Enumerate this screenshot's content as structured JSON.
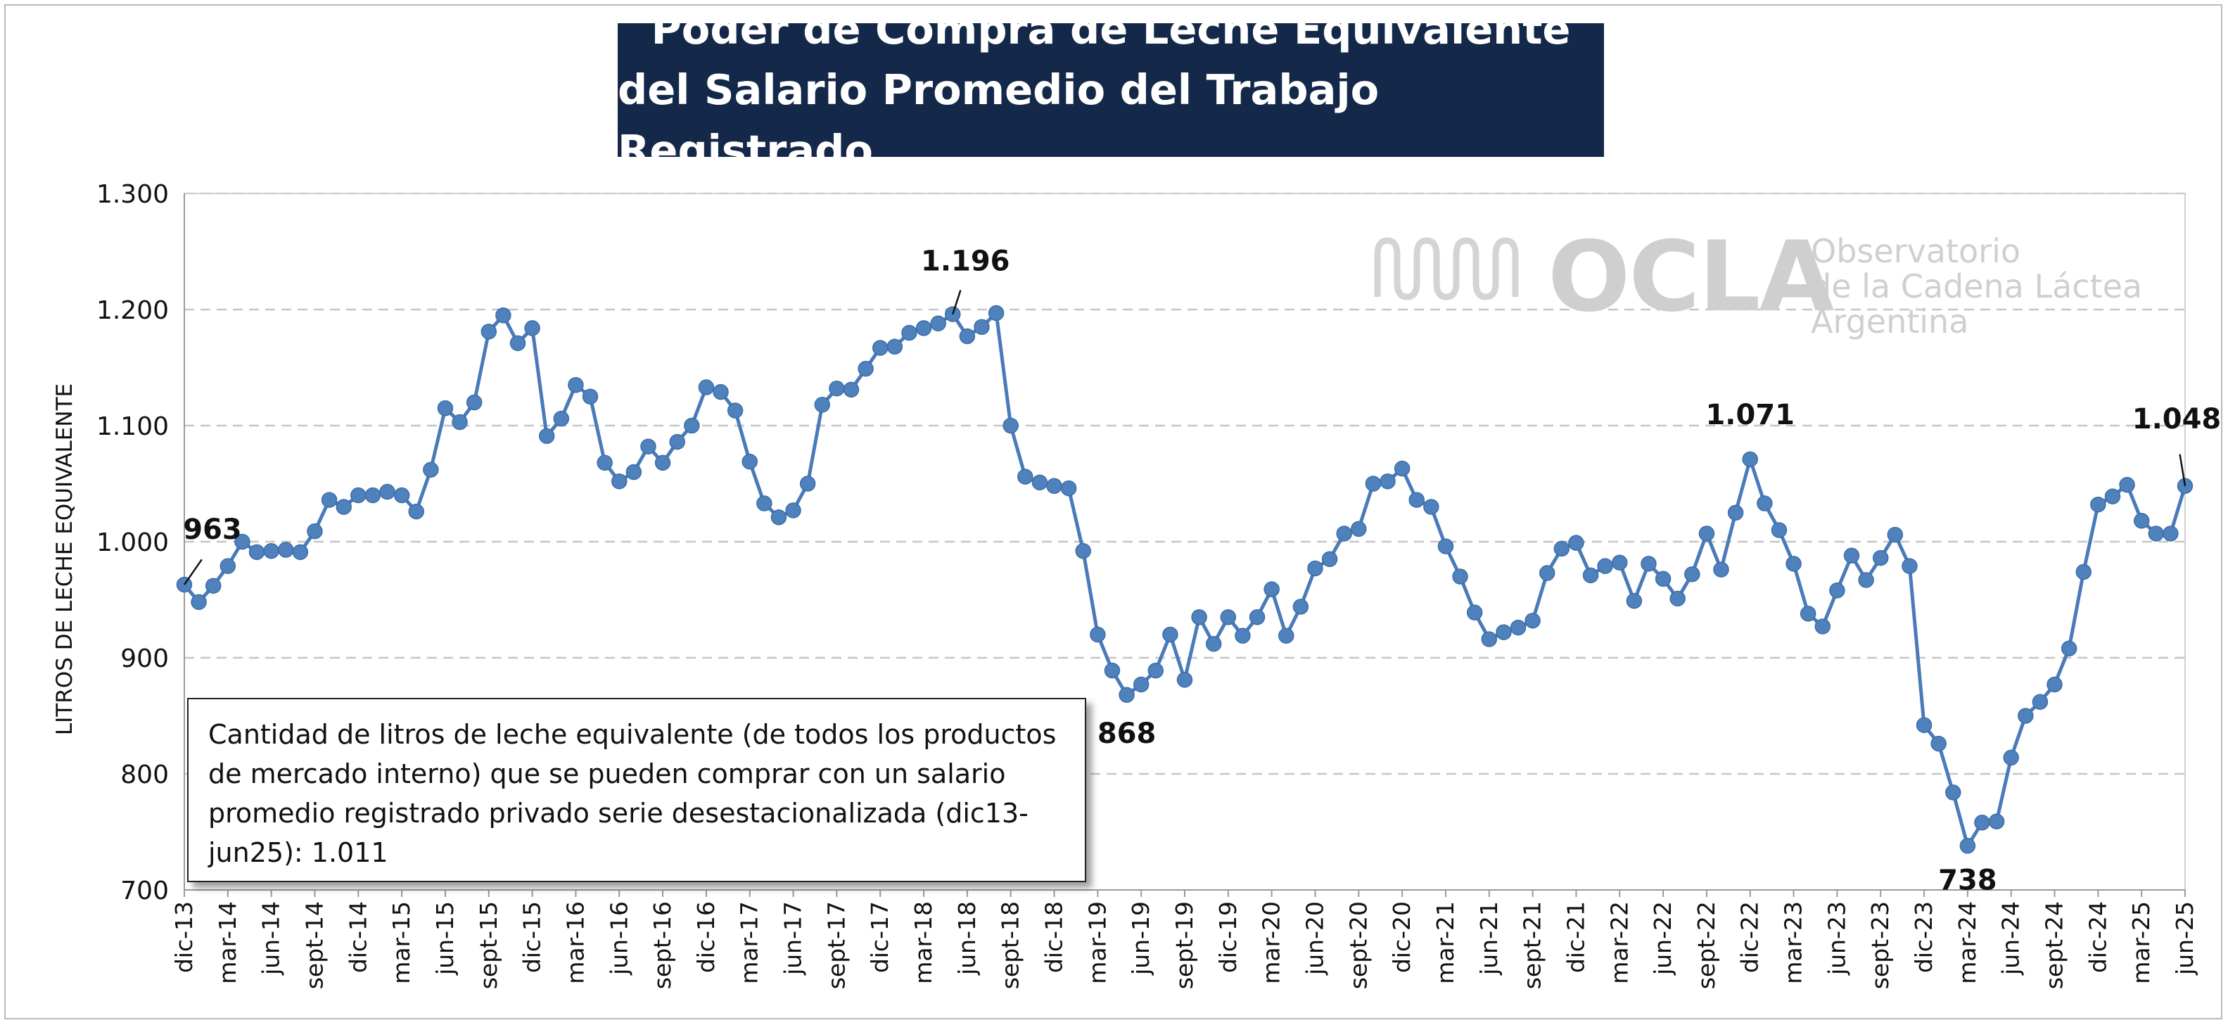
{
  "title": {
    "line1": "Poder de Compra de Leche Equivalente",
    "line2": "del Salario Promedio del Trabajo Registrado"
  },
  "logo": {
    "name": "OCLA",
    "line1": "Observatorio",
    "line2": "de la Cadena Láctea",
    "line3": "Argentina"
  },
  "note": "Cantidad de litros de leche equivalente (de todos los productos de mercado interno) que se pueden comprar con un salario promedio registrado privado serie desestacionalizada (dic13-jun25): 1.011",
  "colors": {
    "line": "#4a7ab8",
    "marker": "#4f81bd",
    "title_bg": "#14294a",
    "grid": "#c6c6c6"
  },
  "chart_data": {
    "type": "line",
    "ylabel": "LITROS DE LECHE EQUIVALENTE",
    "ylim": [
      700,
      1300
    ],
    "yticks": [
      700,
      800,
      900,
      1000,
      1100,
      1200,
      1300
    ],
    "ytick_labels": [
      "700",
      "800",
      "900",
      "1.000",
      "1.100",
      "1.200",
      "1.300"
    ],
    "grid": "horizontal dashed",
    "x_start": "dic-13",
    "x_end": "jun-25",
    "xtick_labels": [
      "dic-13",
      "mar-14",
      "jun-14",
      "sept-14",
      "dic-14",
      "mar-15",
      "jun-15",
      "sept-15",
      "dic-15",
      "mar-16",
      "jun-16",
      "sept-16",
      "dic-16",
      "mar-17",
      "jun-17",
      "sept-17",
      "dic-17",
      "mar-18",
      "jun-18",
      "sept-18",
      "dic-18",
      "mar-19",
      "jun-19",
      "sept-19",
      "dic-19",
      "mar-20",
      "jun-20",
      "sept-20",
      "dic-20",
      "mar-21",
      "jun-21",
      "sept-21",
      "dic-21",
      "mar-22",
      "jun-22",
      "sept-22",
      "dic-22",
      "mar-23",
      "jun-23",
      "sept-23",
      "dic-23",
      "mar-24",
      "jun-24",
      "sept-24",
      "dic-24",
      "mar-25",
      "jun-25"
    ],
    "series": [
      {
        "values": [
          963,
          948,
          962,
          979,
          1000,
          991,
          992,
          993,
          991,
          1009,
          1036,
          1030,
          1040,
          1040,
          1043,
          1040,
          1026,
          1062,
          1115,
          1103,
          1120,
          1181,
          1195,
          1171,
          1184,
          1091,
          1106,
          1135,
          1125,
          1068,
          1052,
          1060,
          1082,
          1068,
          1086,
          1100,
          1133,
          1129,
          1113,
          1069,
          1033,
          1021,
          1027,
          1050,
          1118,
          1132,
          1131,
          1149,
          1167,
          1168,
          1180,
          1184,
          1188,
          1196,
          1177,
          1185,
          1197,
          1100,
          1056,
          1051,
          1048,
          1046,
          992,
          920,
          889,
          868,
          877,
          889,
          920,
          881,
          935,
          912,
          935,
          919,
          935,
          959,
          919,
          944,
          977,
          985,
          1007,
          1011,
          1050,
          1052,
          1063,
          1036,
          1030,
          996,
          970,
          939,
          916,
          922,
          926,
          932,
          973,
          994,
          999,
          971,
          979,
          982,
          949,
          981,
          968,
          951,
          972,
          1007,
          976,
          1025,
          1071,
          1033,
          1010,
          981,
          938,
          927,
          958,
          988,
          967,
          986,
          1006,
          979,
          842,
          826,
          784,
          738,
          758,
          759,
          814,
          850,
          862,
          877,
          908,
          974,
          1032,
          1039,
          1049,
          1018,
          1007,
          1007,
          1048
        ]
      }
    ],
    "annotations": [
      {
        "label": "963",
        "value": 963
      },
      {
        "label": "1.196",
        "value": 1196
      },
      {
        "label": "868",
        "value": 868
      },
      {
        "label": "1.071",
        "value": 1071
      },
      {
        "label": "738",
        "value": 738
      },
      {
        "label": "1.048",
        "value": 1048
      }
    ]
  }
}
